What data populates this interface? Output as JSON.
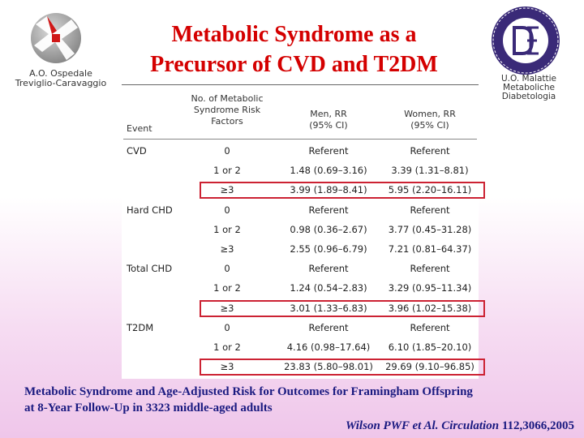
{
  "org_left": [
    "A.O. Ospedale",
    "Treviglio-Caravaggio"
  ],
  "org_right": [
    "U.O. Malattie",
    "Metaboliche",
    "Diabetologia"
  ],
  "title_lines": [
    "Metabolic Syndrome as a",
    "Precursor of CVD and T2DM"
  ],
  "table": {
    "headers": {
      "event": "Event",
      "factors": [
        "No. of Metabolic",
        "Syndrome Risk",
        "Factors"
      ],
      "men": [
        "Men, RR",
        "(95% CI)"
      ],
      "women": [
        "Women, RR",
        "(95% CI)"
      ]
    },
    "rows": [
      {
        "event": "CVD",
        "factors": "0",
        "men": "Referent",
        "women": "Referent",
        "highlight": false
      },
      {
        "event": "",
        "factors": "1 or 2",
        "men": "1.48 (0.69–3.16)",
        "women": "3.39 (1.31–8.81)",
        "highlight": false
      },
      {
        "event": "",
        "factors": "≥3",
        "men": "3.99 (1.89–8.41)",
        "women": "5.95 (2.20–16.11)",
        "highlight": true
      },
      {
        "event": "Hard CHD",
        "factors": "0",
        "men": "Referent",
        "women": "Referent",
        "highlight": false
      },
      {
        "event": "",
        "factors": "1 or 2",
        "men": "0.98 (0.36–2.67)",
        "women": "3.77 (0.45–31.28)",
        "highlight": false
      },
      {
        "event": "",
        "factors": "≥3",
        "men": "2.55 (0.96–6.79)",
        "women": "7.21 (0.81–64.37)",
        "highlight": false
      },
      {
        "event": "Total CHD",
        "factors": "0",
        "men": "Referent",
        "women": "Referent",
        "highlight": false
      },
      {
        "event": "",
        "factors": "1 or 2",
        "men": "1.24 (0.54–2.83)",
        "women": "3.29 (0.95–11.34)",
        "highlight": false
      },
      {
        "event": "",
        "factors": "≥3",
        "men": "3.01 (1.33–6.83)",
        "women": "3.96 (1.02–15.38)",
        "highlight": true
      },
      {
        "event": "T2DM",
        "factors": "0",
        "men": "Referent",
        "women": "Referent",
        "highlight": false
      },
      {
        "event": "",
        "factors": "1 or 2",
        "men": "4.16 (0.98–17.64)",
        "women": "6.10 (1.85–20.10)",
        "highlight": false
      },
      {
        "event": "",
        "factors": "≥3",
        "men": "23.83 (5.80–98.01)",
        "women": "29.69 (9.10–96.85)",
        "highlight": true
      }
    ]
  },
  "caption_lines": [
    "Metabolic Syndrome and Age-Adjusted Risk for Outcomes for Framingham Offspring",
    "at 8-Year Follow-Up in 3323 middle-aged adults"
  ],
  "citation": {
    "authors": "Wilson PWF et Al. Circulation",
    "ref": " 112,3066,2005"
  },
  "colors": {
    "title": "#d40000",
    "caption": "#1a1a80",
    "highlight_box": "#cc2233"
  },
  "logos": {
    "left": "hospital-cross-logo",
    "right": "diabetologia-seal-logo"
  }
}
